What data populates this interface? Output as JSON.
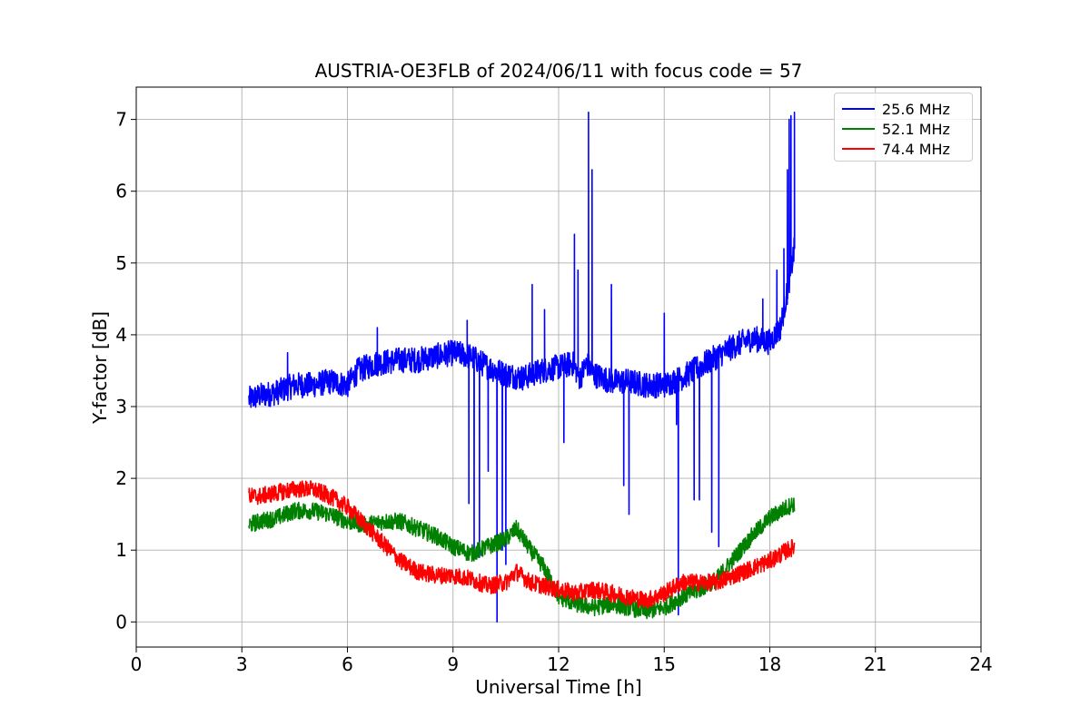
{
  "chart_data": {
    "type": "line",
    "title": "AUSTRIA-OE3FLB of 2024/06/11 with focus code = 57",
    "xlabel": "Universal Time [h]",
    "ylabel": "Y-factor [dB]",
    "xlim": [
      0,
      24
    ],
    "ylim": [
      -0.35,
      7.45
    ],
    "xticks": [
      0,
      3,
      6,
      9,
      12,
      15,
      18,
      21,
      24
    ],
    "xtick_labels": [
      "0",
      "3",
      "6",
      "9",
      "12",
      "15",
      "18",
      "21",
      "24"
    ],
    "yticks": [
      0,
      1,
      2,
      3,
      4,
      5,
      6,
      7
    ],
    "ytick_labels": [
      "0",
      "1",
      "2",
      "3",
      "4",
      "5",
      "6",
      "7"
    ],
    "grid": true,
    "legend_position": "top-right",
    "series": [
      {
        "name": "25.6 MHz",
        "color": "#0000ff",
        "noise": 0.18,
        "x": [
          3.2,
          3.5,
          4.0,
          4.5,
          5.0,
          5.5,
          6.0,
          6.3,
          6.8,
          7.5,
          8.0,
          8.5,
          9.0,
          9.5,
          10.0,
          10.5,
          11.0,
          11.5,
          12.0,
          12.4,
          12.6,
          12.8,
          13.0,
          13.5,
          14.0,
          14.5,
          15.0,
          15.5,
          16.0,
          16.5,
          17.0,
          17.5,
          18.0,
          18.3,
          18.5,
          18.7
        ],
        "y": [
          3.1,
          3.15,
          3.2,
          3.3,
          3.3,
          3.35,
          3.3,
          3.5,
          3.6,
          3.65,
          3.65,
          3.7,
          3.75,
          3.7,
          3.55,
          3.45,
          3.4,
          3.5,
          3.55,
          3.6,
          3.4,
          3.6,
          3.45,
          3.35,
          3.35,
          3.3,
          3.3,
          3.4,
          3.55,
          3.7,
          3.85,
          3.95,
          3.9,
          4.1,
          4.6,
          5.2
        ],
        "spikes": [
          {
            "x": 9.45,
            "y": 1.65
          },
          {
            "x": 9.6,
            "y": 1.0
          },
          {
            "x": 9.75,
            "y": 0.9
          },
          {
            "x": 10.0,
            "y": 2.1
          },
          {
            "x": 10.25,
            "y": 0.0
          },
          {
            "x": 10.4,
            "y": 1.0
          },
          {
            "x": 10.5,
            "y": 0.8
          },
          {
            "x": 12.15,
            "y": 2.5
          },
          {
            "x": 13.85,
            "y": 1.9
          },
          {
            "x": 14.0,
            "y": 1.5
          },
          {
            "x": 15.35,
            "y": 2.75
          },
          {
            "x": 15.4,
            "y": 0.1
          },
          {
            "x": 15.85,
            "y": 1.7
          },
          {
            "x": 16.0,
            "y": 1.7
          },
          {
            "x": 16.35,
            "y": 1.25
          },
          {
            "x": 16.55,
            "y": 1.05
          },
          {
            "x": 11.25,
            "y": 4.7
          },
          {
            "x": 11.6,
            "y": 4.35
          },
          {
            "x": 12.45,
            "y": 5.4
          },
          {
            "x": 12.55,
            "y": 4.9
          },
          {
            "x": 12.85,
            "y": 7.1
          },
          {
            "x": 12.95,
            "y": 6.3
          },
          {
            "x": 13.5,
            "y": 4.7
          },
          {
            "x": 15.0,
            "y": 4.3
          },
          {
            "x": 17.8,
            "y": 4.5
          },
          {
            "x": 18.2,
            "y": 4.9
          },
          {
            "x": 18.4,
            "y": 5.2
          },
          {
            "x": 18.5,
            "y": 6.3
          },
          {
            "x": 18.55,
            "y": 7.0
          },
          {
            "x": 18.6,
            "y": 7.05
          },
          {
            "x": 18.7,
            "y": 7.1
          },
          {
            "x": 9.4,
            "y": 4.2
          },
          {
            "x": 6.85,
            "y": 4.1
          },
          {
            "x": 4.3,
            "y": 3.75
          }
        ]
      },
      {
        "name": "52.1 MHz",
        "color": "#008000",
        "noise": 0.12,
        "x": [
          3.2,
          3.5,
          4.0,
          4.5,
          5.0,
          5.5,
          6.0,
          6.5,
          7.0,
          7.5,
          8.0,
          8.5,
          9.0,
          9.5,
          10.0,
          10.5,
          10.8,
          11.2,
          11.6,
          12.0,
          12.5,
          13.0,
          13.5,
          14.0,
          14.5,
          15.0,
          15.5,
          16.0,
          16.5,
          17.0,
          17.5,
          18.0,
          18.5,
          18.7
        ],
        "y": [
          1.35,
          1.4,
          1.45,
          1.55,
          1.55,
          1.5,
          1.4,
          1.35,
          1.4,
          1.4,
          1.3,
          1.2,
          1.05,
          0.95,
          1.05,
          1.15,
          1.3,
          1.0,
          0.75,
          0.35,
          0.25,
          0.2,
          0.25,
          0.2,
          0.15,
          0.2,
          0.35,
          0.45,
          0.6,
          0.9,
          1.2,
          1.45,
          1.6,
          1.65
        ]
      },
      {
        "name": "74.4 MHz",
        "color": "#ff0000",
        "noise": 0.12,
        "x": [
          3.2,
          3.5,
          4.0,
          4.5,
          5.0,
          5.5,
          6.0,
          6.5,
          7.0,
          7.5,
          8.0,
          8.5,
          9.0,
          9.5,
          10.0,
          10.5,
          10.8,
          11.2,
          11.6,
          12.0,
          12.5,
          13.0,
          13.5,
          14.0,
          14.5,
          15.0,
          15.5,
          16.0,
          16.5,
          17.0,
          17.5,
          18.0,
          18.5,
          18.7
        ],
        "y": [
          1.75,
          1.75,
          1.8,
          1.85,
          1.85,
          1.75,
          1.6,
          1.35,
          1.1,
          0.85,
          0.7,
          0.65,
          0.65,
          0.6,
          0.5,
          0.55,
          0.7,
          0.55,
          0.5,
          0.45,
          0.4,
          0.45,
          0.4,
          0.35,
          0.3,
          0.4,
          0.55,
          0.55,
          0.55,
          0.65,
          0.75,
          0.85,
          1.0,
          1.05
        ]
      }
    ]
  }
}
